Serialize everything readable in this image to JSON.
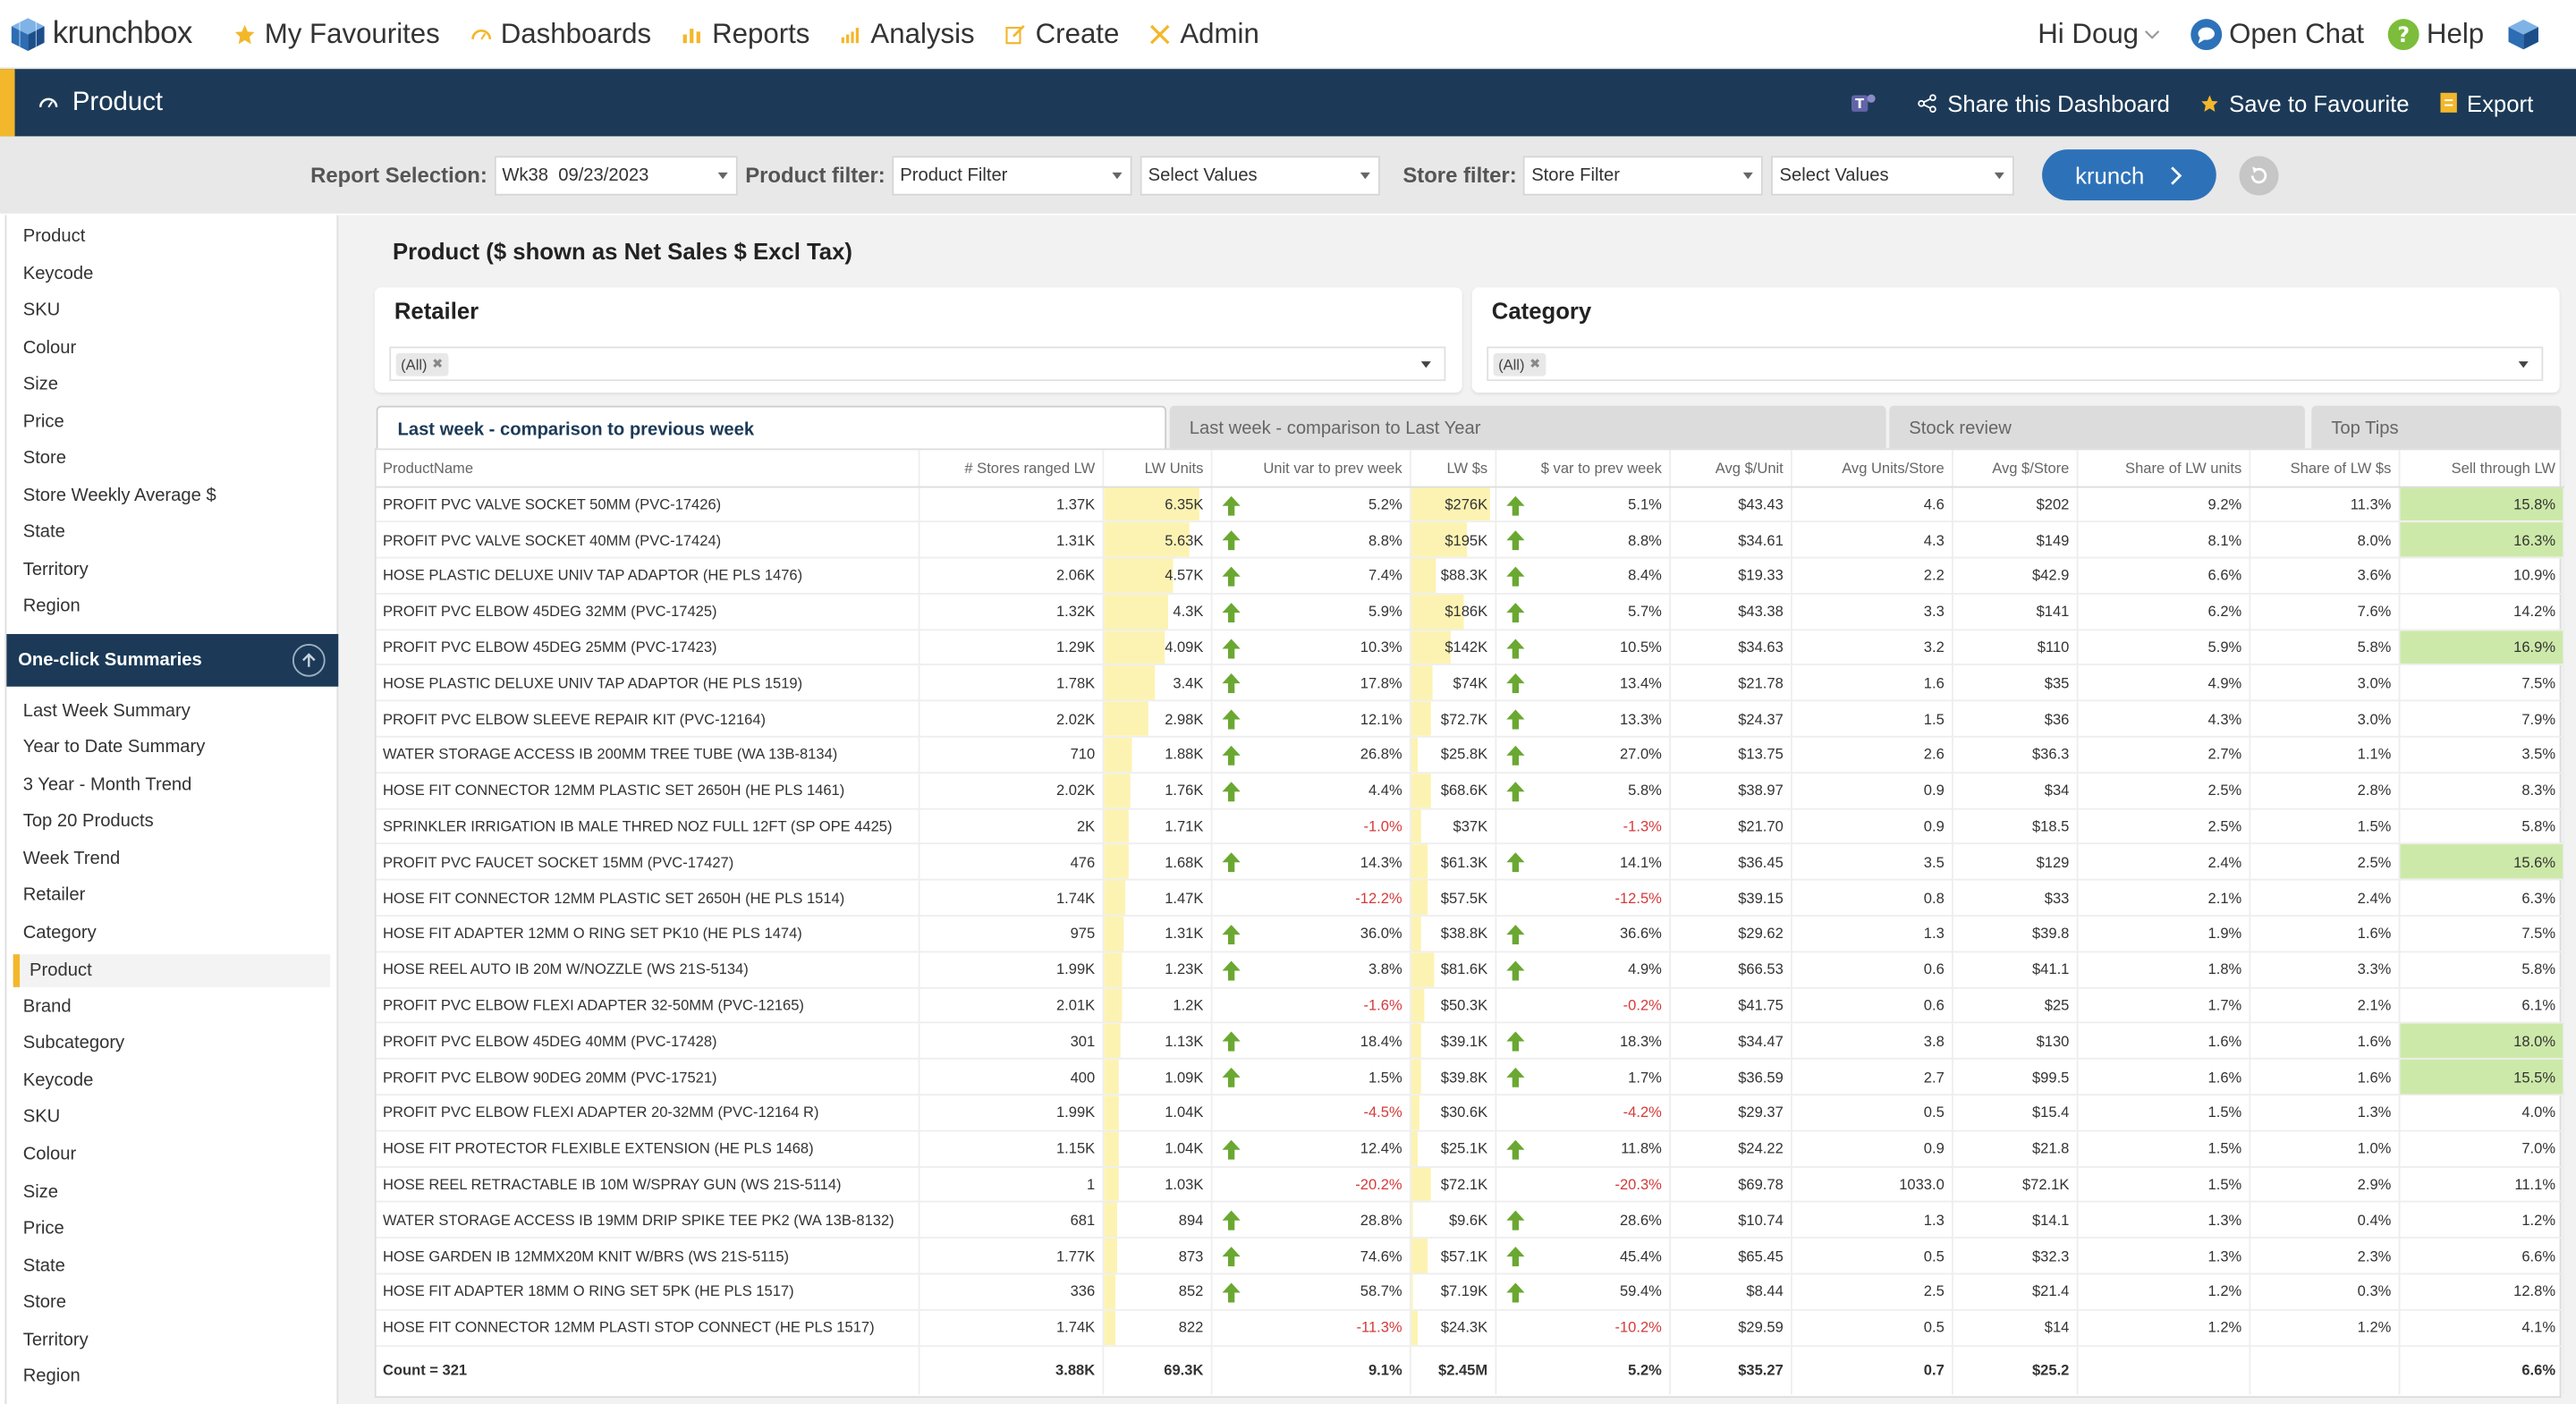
{
  "nav": {
    "logo": "krunchbox",
    "items": [
      "My Favourites",
      "Dashboards",
      "Reports",
      "Analysis",
      "Create",
      "Admin"
    ],
    "greeting": "Hi Doug",
    "open_chat": "Open Chat",
    "help": "Help"
  },
  "dashbar": {
    "title": "Product",
    "share": "Share this Dashboard",
    "save": "Save to Favourite",
    "export": "Export"
  },
  "filters": {
    "report_label": "Report Selection:",
    "report_value": "Wk38  09/23/2023",
    "product_label": "Product filter:",
    "product_filter": "Product Filter",
    "product_values": "Select Values",
    "store_label": "Store filter:",
    "store_filter": "Store Filter",
    "store_values": "Select Values",
    "krunch": "krunch"
  },
  "sidebar": {
    "top_items": [
      "Product",
      "Keycode",
      "SKU",
      "Colour",
      "Size",
      "Price",
      "Store",
      "Store Weekly Average $",
      "State",
      "Territory",
      "Region"
    ],
    "section_title": "One-click Summaries",
    "summary_items": [
      "Last Week Summary",
      "Year to Date Summary",
      "3 Year - Month Trend",
      "Top 20 Products",
      "Week Trend",
      "Retailer",
      "Category",
      "Product",
      "Brand",
      "Subcategory",
      "Keycode",
      "SKU",
      "Colour",
      "Size",
      "Price",
      "State",
      "Store",
      "Territory",
      "Region"
    ],
    "selected": "Product"
  },
  "main": {
    "title": "Product ($ shown as Net Sales $ Excl Tax)",
    "retailer_title": "Retailer",
    "retailer_chip": "(All)",
    "category_title": "Category",
    "category_chip": "(All)",
    "tabs": [
      "Last week - comparison to previous week",
      "Last week - comparison to Last Year",
      "Stock review",
      "Top Tips"
    ]
  },
  "colors": {
    "navy": "#1c3a57",
    "accent": "#f3b72b",
    "up": "#6aa832",
    "down": "#d43a3a",
    "highlight": "#cde9a9",
    "bar": "#fcf3b3"
  },
  "table": {
    "headers": [
      "ProductName",
      "# Stores ranged LW",
      "LW Units",
      "Unit var to prev week",
      "LW $s",
      "$ var to prev week",
      "Avg $/Unit",
      "Avg Units/Store",
      "Avg $/Store",
      "Share of LW units",
      "Share of LW $s",
      "Sell through LW"
    ],
    "rows": [
      {
        "name": "PROFIT PVC VALVE SOCKET 50MM (PVC-17426)",
        "stores": "1.37K",
        "units": "6.35K",
        "units_fill": 1.0,
        "uvar": "5.2%",
        "uvar_dir": "up",
        "dollars": "$276K",
        "dollars_fill": 1.0,
        "dvar": "5.1%",
        "dvar_dir": "up",
        "avgunit": "$43.43",
        "avgus": "4.6",
        "avgds": "$202",
        "shu": "9.2%",
        "shd": "11.3%",
        "st": "15.8%",
        "st_hi": true
      },
      {
        "name": "PROFIT PVC VALVE SOCKET 40MM (PVC-17424)",
        "stores": "1.31K",
        "units": "5.63K",
        "units_fill": 0.89,
        "uvar": "8.8%",
        "uvar_dir": "up",
        "dollars": "$195K",
        "dollars_fill": 0.71,
        "dvar": "8.8%",
        "dvar_dir": "up",
        "avgunit": "$34.61",
        "avgus": "4.3",
        "avgds": "$149",
        "shu": "8.1%",
        "shd": "8.0%",
        "st": "16.3%",
        "st_hi": true
      },
      {
        "name": "HOSE PLASTIC DELUXE UNIV TAP ADAPTOR (HE PLS 1476)",
        "stores": "2.06K",
        "units": "4.57K",
        "units_fill": 0.72,
        "uvar": "7.4%",
        "uvar_dir": "up",
        "dollars": "$88.3K",
        "dollars_fill": 0.32,
        "dvar": "8.4%",
        "dvar_dir": "up",
        "avgunit": "$19.33",
        "avgus": "2.2",
        "avgds": "$42.9",
        "shu": "6.6%",
        "shd": "3.6%",
        "st": "10.9%",
        "st_hi": false
      },
      {
        "name": "PROFIT PVC ELBOW 45DEG 32MM (PVC-17425)",
        "stores": "1.32K",
        "units": "4.3K",
        "units_fill": 0.68,
        "uvar": "5.9%",
        "uvar_dir": "up",
        "dollars": "$186K",
        "dollars_fill": 0.67,
        "dvar": "5.7%",
        "dvar_dir": "up",
        "avgunit": "$43.38",
        "avgus": "3.3",
        "avgds": "$141",
        "shu": "6.2%",
        "shd": "7.6%",
        "st": "14.2%",
        "st_hi": false
      },
      {
        "name": "PROFIT PVC ELBOW 45DEG 25MM (PVC-17423)",
        "stores": "1.29K",
        "units": "4.09K",
        "units_fill": 0.64,
        "uvar": "10.3%",
        "uvar_dir": "up",
        "dollars": "$142K",
        "dollars_fill": 0.51,
        "dvar": "10.5%",
        "dvar_dir": "up",
        "avgunit": "$34.63",
        "avgus": "3.2",
        "avgds": "$110",
        "shu": "5.9%",
        "shd": "5.8%",
        "st": "16.9%",
        "st_hi": true
      },
      {
        "name": "HOSE PLASTIC DELUXE UNIV TAP ADAPTOR (HE PLS 1519)",
        "stores": "1.78K",
        "units": "3.4K",
        "units_fill": 0.54,
        "uvar": "17.8%",
        "uvar_dir": "up",
        "dollars": "$74K",
        "dollars_fill": 0.27,
        "dvar": "13.4%",
        "dvar_dir": "up",
        "avgunit": "$21.78",
        "avgus": "1.6",
        "avgds": "$35",
        "shu": "4.9%",
        "shd": "3.0%",
        "st": "7.5%",
        "st_hi": false
      },
      {
        "name": "PROFIT PVC ELBOW SLEEVE REPAIR KIT (PVC-12164)",
        "stores": "2.02K",
        "units": "2.98K",
        "units_fill": 0.47,
        "uvar": "12.1%",
        "uvar_dir": "up",
        "dollars": "$72.7K",
        "dollars_fill": 0.26,
        "dvar": "13.3%",
        "dvar_dir": "up",
        "avgunit": "$24.37",
        "avgus": "1.5",
        "avgds": "$36",
        "shu": "4.3%",
        "shd": "3.0%",
        "st": "7.9%",
        "st_hi": false
      },
      {
        "name": "WATER STORAGE ACCESS IB 200MM TREE TUBE (WA 13B-8134)",
        "stores": "710",
        "units": "1.88K",
        "units_fill": 0.3,
        "uvar": "26.8%",
        "uvar_dir": "up",
        "dollars": "$25.8K",
        "dollars_fill": 0.09,
        "dvar": "27.0%",
        "dvar_dir": "up",
        "avgunit": "$13.75",
        "avgus": "2.6",
        "avgds": "$36.3",
        "shu": "2.7%",
        "shd": "1.1%",
        "st": "3.5%",
        "st_hi": false
      },
      {
        "name": "HOSE FIT CONNECTOR 12MM PLASTIC SET 2650H (HE PLS 1461)",
        "stores": "2.02K",
        "units": "1.76K",
        "units_fill": 0.28,
        "uvar": "4.4%",
        "uvar_dir": "up",
        "dollars": "$68.6K",
        "dollars_fill": 0.25,
        "dvar": "5.8%",
        "dvar_dir": "up",
        "avgunit": "$38.97",
        "avgus": "0.9",
        "avgds": "$34",
        "shu": "2.5%",
        "shd": "2.8%",
        "st": "8.3%",
        "st_hi": false
      },
      {
        "name": "SPRINKLER IRRIGATION IB MALE THRED NOZ FULL 12FT (SP OPE 4425)",
        "stores": "2K",
        "units": "1.71K",
        "units_fill": 0.27,
        "uvar": "-1.0%",
        "uvar_dir": "down",
        "dollars": "$37K",
        "dollars_fill": 0.13,
        "dvar": "-1.3%",
        "dvar_dir": "down",
        "avgunit": "$21.70",
        "avgus": "0.9",
        "avgds": "$18.5",
        "shu": "2.5%",
        "shd": "1.5%",
        "st": "5.8%",
        "st_hi": false
      },
      {
        "name": "PROFIT PVC FAUCET SOCKET 15MM (PVC-17427)",
        "stores": "476",
        "units": "1.68K",
        "units_fill": 0.26,
        "uvar": "14.3%",
        "uvar_dir": "up",
        "dollars": "$61.3K",
        "dollars_fill": 0.22,
        "dvar": "14.1%",
        "dvar_dir": "up",
        "avgunit": "$36.45",
        "avgus": "3.5",
        "avgds": "$129",
        "shu": "2.4%",
        "shd": "2.5%",
        "st": "15.6%",
        "st_hi": true
      },
      {
        "name": "HOSE FIT CONNECTOR 12MM PLASTIC SET 2650H (HE PLS 1514)",
        "stores": "1.74K",
        "units": "1.47K",
        "units_fill": 0.23,
        "uvar": "-12.2%",
        "uvar_dir": "down",
        "dollars": "$57.5K",
        "dollars_fill": 0.21,
        "dvar": "-12.5%",
        "dvar_dir": "down",
        "avgunit": "$39.15",
        "avgus": "0.8",
        "avgds": "$33",
        "shu": "2.1%",
        "shd": "2.4%",
        "st": "6.3%",
        "st_hi": false
      },
      {
        "name": "HOSE FIT ADAPTER 12MM O RING SET PK10 (HE PLS 1474)",
        "stores": "975",
        "units": "1.31K",
        "units_fill": 0.21,
        "uvar": "36.0%",
        "uvar_dir": "up",
        "dollars": "$38.8K",
        "dollars_fill": 0.14,
        "dvar": "36.6%",
        "dvar_dir": "up",
        "avgunit": "$29.62",
        "avgus": "1.3",
        "avgds": "$39.8",
        "shu": "1.9%",
        "shd": "1.6%",
        "st": "7.5%",
        "st_hi": false
      },
      {
        "name": "HOSE REEL AUTO IB 20M W/NOZZLE (WS 21S-5134)",
        "stores": "1.99K",
        "units": "1.23K",
        "units_fill": 0.19,
        "uvar": "3.8%",
        "uvar_dir": "up",
        "dollars": "$81.6K",
        "dollars_fill": 0.3,
        "dvar": "4.9%",
        "dvar_dir": "up",
        "avgunit": "$66.53",
        "avgus": "0.6",
        "avgds": "$41.1",
        "shu": "1.8%",
        "shd": "3.3%",
        "st": "5.8%",
        "st_hi": false
      },
      {
        "name": "PROFIT PVC ELBOW FLEXI ADAPTER 32-50MM (PVC-12165)",
        "stores": "2.01K",
        "units": "1.2K",
        "units_fill": 0.19,
        "uvar": "-1.6%",
        "uvar_dir": "down",
        "dollars": "$50.3K",
        "dollars_fill": 0.18,
        "dvar": "-0.2%",
        "dvar_dir": "down",
        "avgunit": "$41.75",
        "avgus": "0.6",
        "avgds": "$25",
        "shu": "1.7%",
        "shd": "2.1%",
        "st": "6.1%",
        "st_hi": false
      },
      {
        "name": "PROFIT PVC ELBOW 45DEG 40MM (PVC-17428)",
        "stores": "301",
        "units": "1.13K",
        "units_fill": 0.18,
        "uvar": "18.4%",
        "uvar_dir": "up",
        "dollars": "$39.1K",
        "dollars_fill": 0.14,
        "dvar": "18.3%",
        "dvar_dir": "up",
        "avgunit": "$34.47",
        "avgus": "3.8",
        "avgds": "$130",
        "shu": "1.6%",
        "shd": "1.6%",
        "st": "18.0%",
        "st_hi": true
      },
      {
        "name": "PROFIT PVC ELBOW 90DEG 20MM (PVC-17521)",
        "stores": "400",
        "units": "1.09K",
        "units_fill": 0.17,
        "uvar": "1.5%",
        "uvar_dir": "up",
        "dollars": "$39.8K",
        "dollars_fill": 0.14,
        "dvar": "1.7%",
        "dvar_dir": "up",
        "avgunit": "$36.59",
        "avgus": "2.7",
        "avgds": "$99.5",
        "shu": "1.6%",
        "shd": "1.6%",
        "st": "15.5%",
        "st_hi": true
      },
      {
        "name": "PROFIT PVC ELBOW FLEXI ADAPTER 20-32MM (PVC-12164 R)",
        "stores": "1.99K",
        "units": "1.04K",
        "units_fill": 0.16,
        "uvar": "-4.5%",
        "uvar_dir": "down",
        "dollars": "$30.6K",
        "dollars_fill": 0.11,
        "dvar": "-4.2%",
        "dvar_dir": "down",
        "avgunit": "$29.37",
        "avgus": "0.5",
        "avgds": "$15.4",
        "shu": "1.5%",
        "shd": "1.3%",
        "st": "4.0%",
        "st_hi": false
      },
      {
        "name": "HOSE FIT PROTECTOR FLEXIBLE EXTENSION (HE PLS 1468)",
        "stores": "1.15K",
        "units": "1.04K",
        "units_fill": 0.16,
        "uvar": "12.4%",
        "uvar_dir": "up",
        "dollars": "$25.1K",
        "dollars_fill": 0.09,
        "dvar": "11.8%",
        "dvar_dir": "up",
        "avgunit": "$24.22",
        "avgus": "0.9",
        "avgds": "$21.8",
        "shu": "1.5%",
        "shd": "1.0%",
        "st": "7.0%",
        "st_hi": false
      },
      {
        "name": "HOSE REEL RETRACTABLE IB 10M W/SPRAY GUN (WS 21S-5114)",
        "stores": "1",
        "units": "1.03K",
        "units_fill": 0.16,
        "uvar": "-20.2%",
        "uvar_dir": "down",
        "dollars": "$72.1K",
        "dollars_fill": 0.26,
        "dvar": "-20.3%",
        "dvar_dir": "down",
        "avgunit": "$69.78",
        "avgus": "1033.0",
        "avgds": "$72.1K",
        "shu": "1.5%",
        "shd": "2.9%",
        "st": "11.1%",
        "st_hi": false
      },
      {
        "name": "WATER STORAGE ACCESS IB 19MM DRIP SPIKE TEE PK2 (WA 13B-8132)",
        "stores": "681",
        "units": "894",
        "units_fill": 0.14,
        "uvar": "28.8%",
        "uvar_dir": "up",
        "dollars": "$9.6K",
        "dollars_fill": 0.03,
        "dvar": "28.6%",
        "dvar_dir": "up",
        "avgunit": "$10.74",
        "avgus": "1.3",
        "avgds": "$14.1",
        "shu": "1.3%",
        "shd": "0.4%",
        "st": "1.2%",
        "st_hi": false
      },
      {
        "name": "HOSE GARDEN IB 12MMX20M KNIT W/BRS (WS 21S-5115)",
        "stores": "1.77K",
        "units": "873",
        "units_fill": 0.14,
        "uvar": "74.6%",
        "uvar_dir": "up",
        "dollars": "$57.1K",
        "dollars_fill": 0.21,
        "dvar": "45.4%",
        "dvar_dir": "up",
        "avgunit": "$65.45",
        "avgus": "0.5",
        "avgds": "$32.3",
        "shu": "1.3%",
        "shd": "2.3%",
        "st": "6.6%",
        "st_hi": false
      },
      {
        "name": "HOSE FIT ADAPTER 18MM O RING SET 5PK (HE PLS 1517)",
        "stores": "336",
        "units": "852",
        "units_fill": 0.13,
        "uvar": "58.7%",
        "uvar_dir": "up",
        "dollars": "$7.19K",
        "dollars_fill": 0.03,
        "dvar": "59.4%",
        "dvar_dir": "up",
        "avgunit": "$8.44",
        "avgus": "2.5",
        "avgds": "$21.4",
        "shu": "1.2%",
        "shd": "0.3%",
        "st": "12.8%",
        "st_hi": false
      },
      {
        "name": "HOSE FIT CONNECTOR 12MM PLASTI STOP CONNECT (HE PLS 1517)",
        "stores": "1.74K",
        "units": "822",
        "units_fill": 0.13,
        "uvar": "-11.3%",
        "uvar_dir": "down",
        "dollars": "$24.3K",
        "dollars_fill": 0.09,
        "dvar": "-10.2%",
        "dvar_dir": "down",
        "avgunit": "$29.59",
        "avgus": "0.5",
        "avgds": "$14",
        "shu": "1.2%",
        "shd": "1.2%",
        "st": "4.1%",
        "st_hi": false
      }
    ],
    "total": {
      "name": "Count = 321",
      "stores": "3.88K",
      "units": "69.3K",
      "uvar": "9.1%",
      "dollars": "$2.45M",
      "dvar": "5.2%",
      "avgunit": "$35.27",
      "avgus": "0.7",
      "avgds": "$25.2",
      "shu": "",
      "shd": "",
      "st": "6.6%"
    }
  }
}
